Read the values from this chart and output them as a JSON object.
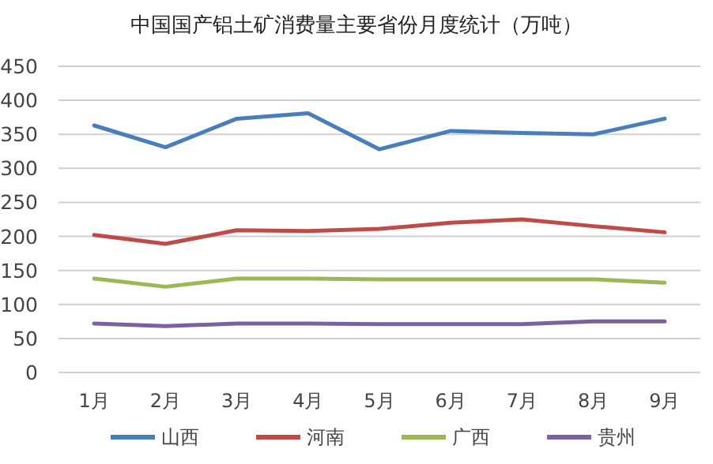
{
  "chart_data": {
    "type": "line",
    "title": "中国国产铝土矿消费量主要省份月度统计（万吨）",
    "categories": [
      "1月",
      "2月",
      "3月",
      "4月",
      "5月",
      "6月",
      "7月",
      "8月",
      "9月"
    ],
    "series": [
      {
        "name": "山西",
        "color": "#4a7ebb",
        "values": [
          363,
          331,
          373,
          381,
          328,
          355,
          352,
          350,
          373
        ]
      },
      {
        "name": "河南",
        "color": "#be4b48",
        "values": [
          202,
          189,
          209,
          208,
          211,
          220,
          225,
          215,
          206
        ]
      },
      {
        "name": "广西",
        "color": "#98b954",
        "values": [
          138,
          126,
          138,
          138,
          137,
          137,
          137,
          137,
          132
        ]
      },
      {
        "name": "贵州",
        "color": "#7d60a0",
        "values": [
          72,
          68,
          72,
          72,
          71,
          71,
          71,
          75,
          75
        ]
      }
    ],
    "ylim": [
      0,
      450
    ],
    "yticks": [
      0,
      50,
      100,
      150,
      200,
      250,
      300,
      350,
      400,
      450
    ],
    "grid": "y",
    "legend": "bottom",
    "marker": "none",
    "line_style": "solid"
  }
}
